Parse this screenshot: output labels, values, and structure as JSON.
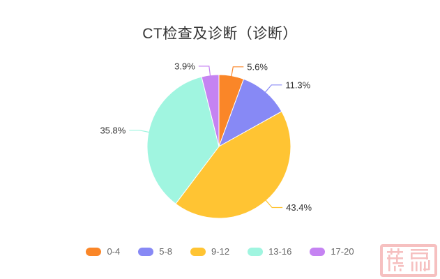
{
  "title": {
    "text": "CT检查及诊断（诊断）"
  },
  "chart_data": {
    "type": "pie",
    "title": "CT检查及诊断（诊断）",
    "categories": [
      "0-4",
      "5-8",
      "9-12",
      "13-16",
      "17-20"
    ],
    "values": [
      5.6,
      11.3,
      43.4,
      35.8,
      3.9
    ],
    "labels": [
      "5.6%",
      "11.3%",
      "43.4%",
      "35.8%",
      "3.9%"
    ],
    "colors": [
      "#fa8628",
      "#8789f5",
      "#ffc433",
      "#a0f5e0",
      "#c583f2"
    ],
    "unit": "percent",
    "start_angle": "top",
    "direction": "clockwise",
    "legend_position": "bottom",
    "label_style": {
      "color": "#333333",
      "leader_lines": true
    }
  },
  "legend": {
    "items": [
      {
        "label": "0-4",
        "color": "#fa8628"
      },
      {
        "label": "5-8",
        "color": "#8789f5"
      },
      {
        "label": "9-12",
        "color": "#ffc433"
      },
      {
        "label": "13-16",
        "color": "#a0f5e0"
      },
      {
        "label": "17-20",
        "color": "#c583f2"
      }
    ]
  },
  "watermark": {
    "type": "seal-stamp",
    "color": "#f5b1b1"
  }
}
